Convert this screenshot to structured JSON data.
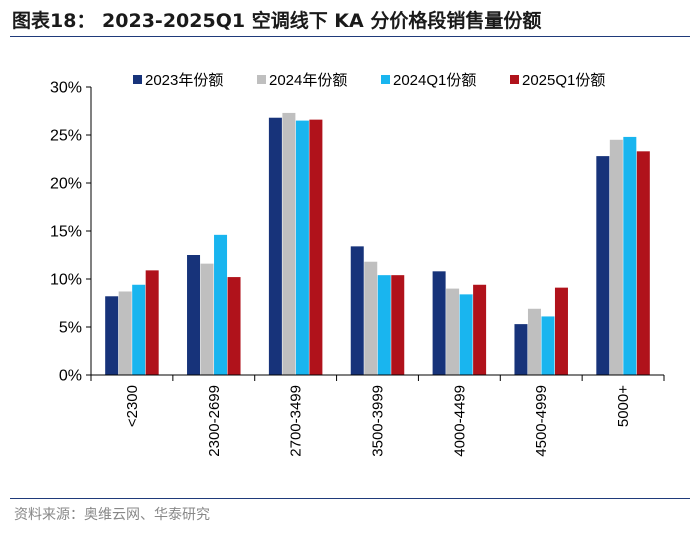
{
  "header": {
    "title": "图表18： 2023-2025Q1 空调线下 KA 分价格段销售量份额"
  },
  "footer": {
    "source": "资料来源：奥维云网、华泰研究"
  },
  "chart_data": {
    "type": "bar",
    "title": "2023-2025Q1 空调线下 KA 分价格段销售量份额",
    "categories": [
      "<2300",
      "2300-2699",
      "2700-3499",
      "3500-3999",
      "4000-4499",
      "4500-4999",
      "5000+"
    ],
    "series": [
      {
        "name": "2023年份额",
        "color": "#17337a",
        "values": [
          8.2,
          12.5,
          26.8,
          13.4,
          10.8,
          5.3,
          22.8
        ]
      },
      {
        "name": "2024年份额",
        "color": "#bfbfbf",
        "values": [
          8.7,
          11.6,
          27.3,
          11.8,
          9.0,
          6.9,
          24.5
        ]
      },
      {
        "name": "2024Q1份额",
        "color": "#19b5ef",
        "values": [
          9.4,
          14.6,
          26.5,
          10.4,
          8.4,
          6.1,
          24.8
        ]
      },
      {
        "name": "2025Q1份额",
        "color": "#b0121b",
        "values": [
          10.9,
          10.2,
          26.6,
          10.4,
          9.4,
          9.1,
          23.3
        ]
      }
    ],
    "yticks": [
      "0%",
      "5%",
      "10%",
      "15%",
      "20%",
      "25%",
      "30%"
    ],
    "ylim": [
      0,
      30
    ],
    "xlabel": "",
    "ylabel": "",
    "legend": "top"
  }
}
